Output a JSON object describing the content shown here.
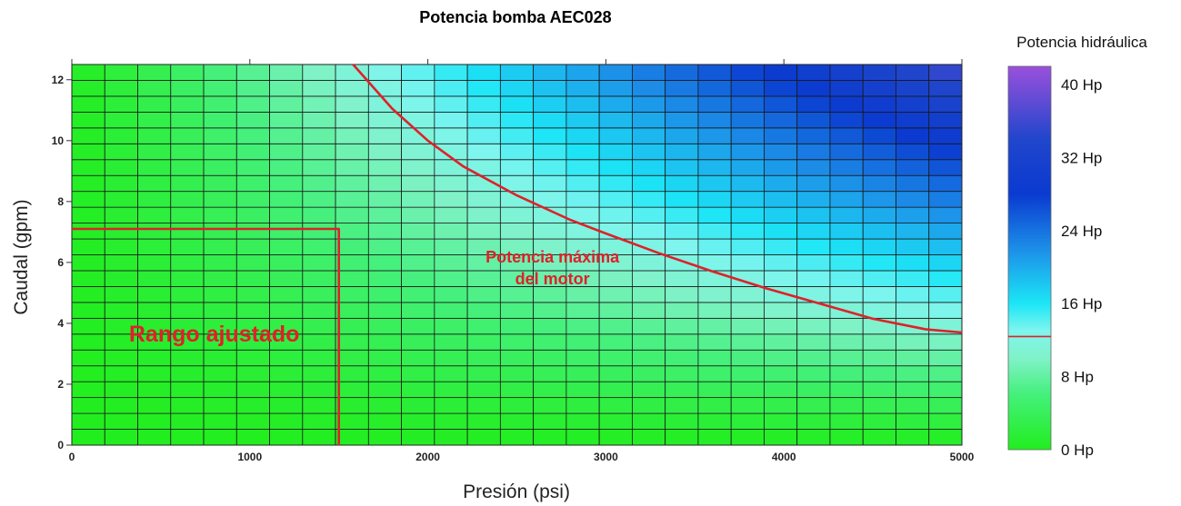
{
  "chart_data": {
    "type": "heatmap",
    "title": "Potencia bomba AEC028",
    "xlabel": "Presión (psi)",
    "ylabel": "Caudal (gpm)",
    "xlim": [
      0,
      5000
    ],
    "ylim": [
      0,
      12.5
    ],
    "x_ticks": [
      0,
      1000,
      2000,
      3000,
      4000,
      5000
    ],
    "x_tick_labels": [
      "0",
      "1000",
      "2000",
      "3000",
      "4000",
      "5000"
    ],
    "y_ticks": [
      0,
      2,
      4,
      6,
      8,
      10,
      12
    ],
    "y_tick_labels": [
      "0",
      "2",
      "4",
      "6",
      "8",
      "10",
      "12"
    ],
    "grid": true,
    "grid_cols": 27,
    "grid_rows": 24,
    "colorbar": {
      "title": "Potencia hidráulica",
      "range": [
        0,
        42
      ],
      "ticks": [
        0,
        8,
        16,
        24,
        32,
        40
      ],
      "tick_labels": [
        "0 Hp",
        "8 Hp",
        "16 Hp",
        "24 Hp",
        "32 Hp",
        "40 Hp"
      ],
      "marker_value": 12.4,
      "colors": [
        {
          "v": 0,
          "c": "#22ee1e"
        },
        {
          "v": 6,
          "c": "#44f07a"
        },
        {
          "v": 10,
          "c": "#80f2c8"
        },
        {
          "v": 13,
          "c": "#7ef5ee"
        },
        {
          "v": 16,
          "c": "#1ce6f6"
        },
        {
          "v": 22,
          "c": "#1c8ee8"
        },
        {
          "v": 28,
          "c": "#0a3ad0"
        },
        {
          "v": 34,
          "c": "#2046cc"
        },
        {
          "v": 42,
          "c": "#9a50dc"
        }
      ]
    },
    "lines": [
      {
        "name": "Rango ajustado",
        "color": "#e0202a",
        "points": [
          [
            0,
            7.1
          ],
          [
            1500,
            7.1
          ],
          [
            1500,
            0
          ]
        ]
      },
      {
        "name": "Potencia máxima del motor",
        "color": "#e0202a",
        "points": [
          [
            1580,
            12.5
          ],
          [
            1800,
            11.05
          ],
          [
            2000,
            10.0
          ],
          [
            2200,
            9.15
          ],
          [
            2500,
            8.2
          ],
          [
            2800,
            7.4
          ],
          [
            3000,
            6.95
          ],
          [
            3300,
            6.3
          ],
          [
            3600,
            5.7
          ],
          [
            3900,
            5.15
          ],
          [
            4200,
            4.65
          ],
          [
            4500,
            4.15
          ],
          [
            4800,
            3.8
          ],
          [
            5000,
            3.7
          ]
        ]
      }
    ],
    "annotations": [
      {
        "id": "rango",
        "lines": [
          "Rango ajustado"
        ],
        "x": 800,
        "y": 3.4,
        "size": 25
      },
      {
        "id": "potmax",
        "lines": [
          "Potencia máxima",
          "del motor"
        ],
        "x": 2700,
        "y": 6.0,
        "size": 18
      }
    ]
  }
}
